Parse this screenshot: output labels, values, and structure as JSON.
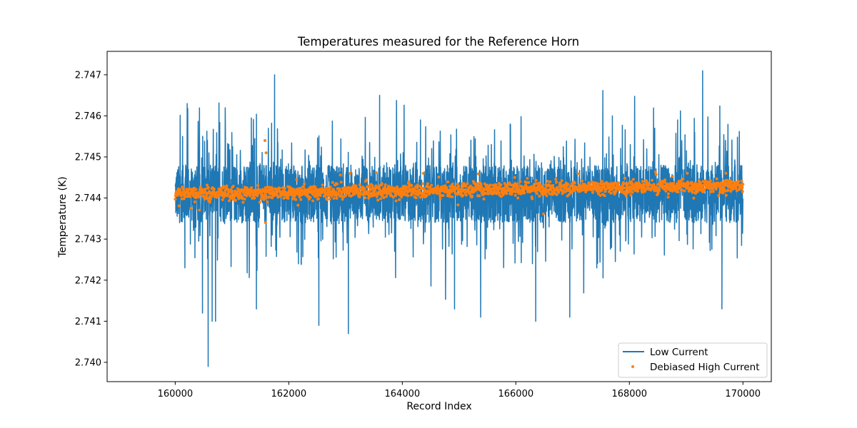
{
  "chart_data": {
    "type": "line",
    "title": "Temperatures measured for the Reference Horn",
    "xlabel": "Record Index",
    "ylabel": "Temperature (K)",
    "xlim": [
      158800,
      170500
    ],
    "ylim": [
      2.73953,
      2.74757
    ],
    "x_ticks": [
      160000,
      162000,
      164000,
      166000,
      168000,
      170000
    ],
    "x_tick_labels": [
      "160000",
      "162000",
      "164000",
      "166000",
      "168000",
      "170000"
    ],
    "y_ticks": [
      2.74,
      2.741,
      2.742,
      2.743,
      2.744,
      2.745,
      2.746,
      2.747
    ],
    "y_tick_labels": [
      "2.740",
      "2.741",
      "2.742",
      "2.743",
      "2.744",
      "2.745",
      "2.746",
      "2.747"
    ],
    "grid": false,
    "legend_position": "lower-right",
    "x_start": 160000,
    "x_end": 170000,
    "series": [
      {
        "name": "Low Current",
        "style": "line",
        "color": "#1f77b4",
        "baseline": 2.7441,
        "band_low": 2.7435,
        "band_high": 2.7449,
        "range_min": 2.7399,
        "range_max": 2.7471,
        "extremes": [
          {
            "x": 161750,
            "y": 2.747
          },
          {
            "x": 169290,
            "y": 2.7471
          },
          {
            "x": 163600,
            "y": 2.7465
          },
          {
            "x": 160580,
            "y": 2.7399
          },
          {
            "x": 163050,
            "y": 2.7407
          },
          {
            "x": 162530,
            "y": 2.7409
          },
          {
            "x": 160130,
            "y": 2.7455
          },
          {
            "x": 160170,
            "y": 2.7423
          },
          {
            "x": 160210,
            "y": 2.7463
          },
          {
            "x": 160480,
            "y": 2.7412
          },
          {
            "x": 160650,
            "y": 2.741
          },
          {
            "x": 160710,
            "y": 2.741
          },
          {
            "x": 161430,
            "y": 2.7413
          },
          {
            "x": 165380,
            "y": 2.7411
          },
          {
            "x": 164920,
            "y": 2.7413
          },
          {
            "x": 166350,
            "y": 2.741
          },
          {
            "x": 166950,
            "y": 2.7411
          },
          {
            "x": 167700,
            "y": 2.746
          },
          {
            "x": 168850,
            "y": 2.7459
          },
          {
            "x": 169150,
            "y": 2.7456
          },
          {
            "x": 169630,
            "y": 2.7413
          },
          {
            "x": 165900,
            "y": 2.7458
          },
          {
            "x": 164320,
            "y": 2.7459
          }
        ]
      },
      {
        "name": "Debiased High Current",
        "style": "points",
        "color": "#ff7f0e",
        "baseline_start": 2.7441,
        "baseline_end": 2.7443,
        "spread": 0.0002,
        "range_min": 2.7434,
        "range_max": 2.7454,
        "extremes": [
          {
            "x": 161580,
            "y": 2.7454
          },
          {
            "x": 161600,
            "y": 2.7451
          },
          {
            "x": 161590,
            "y": 2.7434
          },
          {
            "x": 163080,
            "y": 2.7446
          },
          {
            "x": 164370,
            "y": 2.7446
          },
          {
            "x": 165980,
            "y": 2.7445
          },
          {
            "x": 169020,
            "y": 2.7446
          },
          {
            "x": 169700,
            "y": 2.7446
          }
        ]
      }
    ]
  }
}
